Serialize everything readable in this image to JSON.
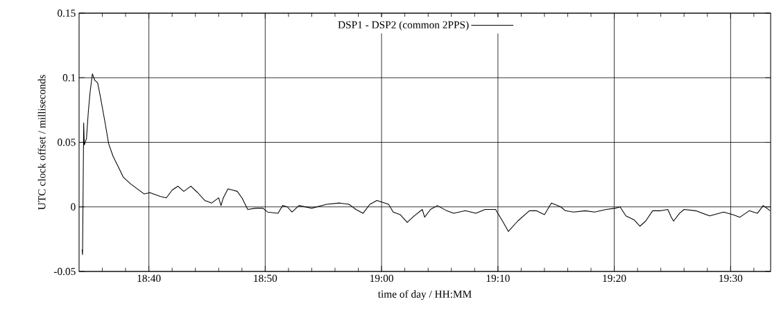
{
  "chart_data": {
    "type": "line",
    "xlabel": "time of day / HH:MM",
    "ylabel": "UTC clock offset / milliseconds",
    "xlim": [
      18.5667,
      19.5573
    ],
    "ylim": [
      -0.05,
      0.15
    ],
    "xticks": [
      {
        "value": 18.6,
        "label": null
      },
      {
        "value": 18.6333,
        "label": null
      },
      {
        "value": 18.6667,
        "label": "18:40"
      },
      {
        "value": 18.7,
        "label": null
      },
      {
        "value": 18.7333,
        "label": null
      },
      {
        "value": 18.7667,
        "label": null
      },
      {
        "value": 18.8,
        "label": null
      },
      {
        "value": 18.8333,
        "label": "18:50"
      },
      {
        "value": 18.8667,
        "label": null
      },
      {
        "value": 18.9,
        "label": null
      },
      {
        "value": 18.9333,
        "label": null
      },
      {
        "value": 18.9667,
        "label": null
      },
      {
        "value": 19.0,
        "label": "19:00"
      },
      {
        "value": 19.0333,
        "label": null
      },
      {
        "value": 19.0667,
        "label": null
      },
      {
        "value": 19.1,
        "label": null
      },
      {
        "value": 19.1333,
        "label": null
      },
      {
        "value": 19.1667,
        "label": "19:10"
      },
      {
        "value": 19.2,
        "label": null
      },
      {
        "value": 19.2333,
        "label": null
      },
      {
        "value": 19.2667,
        "label": null
      },
      {
        "value": 19.3,
        "label": null
      },
      {
        "value": 19.3333,
        "label": "19:20"
      },
      {
        "value": 19.3667,
        "label": null
      },
      {
        "value": 19.4,
        "label": null
      },
      {
        "value": 19.4333,
        "label": null
      },
      {
        "value": 19.4667,
        "label": null
      },
      {
        "value": 19.5,
        "label": "19:30"
      },
      {
        "value": 19.5333,
        "label": null
      }
    ],
    "yticks": [
      -0.05,
      0,
      0.05,
      0.1,
      0.15
    ],
    "grid": true,
    "legend": "top",
    "series": [
      {
        "name": "DSP1 - DSP2 (common 2PPS)",
        "color": "#000000",
        "x": [
          18.571,
          18.5717,
          18.5733,
          18.5742,
          18.5773,
          18.58,
          18.5825,
          18.5858,
          18.5892,
          18.5933,
          18.5973,
          18.604,
          18.609,
          18.6155,
          18.6238,
          18.63,
          18.64,
          18.65,
          18.66,
          18.6683,
          18.6833,
          18.6917,
          18.7,
          18.7083,
          18.7167,
          18.7267,
          18.7367,
          18.7467,
          18.7567,
          18.7667,
          18.77,
          18.7733,
          18.78,
          18.7867,
          18.7933,
          18.8,
          18.8083,
          18.82,
          18.83,
          18.8367,
          18.8517,
          18.8583,
          18.865,
          18.8717,
          18.8817,
          18.9,
          18.9217,
          18.94,
          18.9533,
          18.9633,
          18.9733,
          18.9833,
          18.9933,
          19.01,
          19.0167,
          19.0267,
          19.0367,
          19.0467,
          19.0583,
          19.0617,
          19.07,
          19.08,
          19.0933,
          19.1033,
          19.12,
          19.135,
          19.1483,
          19.1633,
          19.1733,
          19.1817,
          19.195,
          19.2117,
          19.2217,
          19.2333,
          19.2433,
          19.2567,
          19.2633,
          19.275,
          19.2917,
          19.305,
          19.3217,
          19.335,
          19.3417,
          19.35,
          19.3617,
          19.37,
          19.3783,
          19.3883,
          19.4,
          19.41,
          19.415,
          19.4183,
          19.4267,
          19.4333,
          19.45,
          19.47,
          19.49,
          19.5033,
          19.5133,
          19.5267,
          19.5383,
          19.5467,
          19.5567
        ],
        "values": [
          -0.033,
          -0.037,
          0.065,
          0.048,
          0.053,
          0.074,
          0.089,
          0.103,
          0.098,
          0.096,
          0.085,
          0.065,
          0.049,
          0.039,
          0.03,
          0.023,
          0.018,
          0.014,
          0.01,
          0.011,
          0.008,
          0.007,
          0.013,
          0.016,
          0.012,
          0.016,
          0.011,
          0.005,
          0.003,
          0.007,
          0.001,
          0.007,
          0.014,
          0.013,
          0.012,
          0.007,
          -0.002,
          -0.001,
          -0.001,
          -0.004,
          -0.005,
          0.001,
          0.0,
          -0.004,
          0.001,
          -0.001,
          0.002,
          0.003,
          0.002,
          -0.002,
          -0.005,
          0.002,
          0.005,
          0.002,
          -0.004,
          -0.006,
          -0.012,
          -0.007,
          -0.002,
          -0.008,
          -0.002,
          0.001,
          -0.003,
          -0.005,
          -0.003,
          -0.005,
          -0.002,
          -0.002,
          -0.011,
          -0.019,
          -0.011,
          -0.003,
          -0.003,
          -0.006,
          0.003,
          0.0,
          -0.003,
          -0.004,
          -0.003,
          -0.004,
          -0.002,
          -0.001,
          0.0,
          -0.007,
          -0.01,
          -0.015,
          -0.011,
          -0.003,
          -0.003,
          -0.002,
          -0.008,
          -0.011,
          -0.005,
          -0.002,
          -0.003,
          -0.007,
          -0.004,
          -0.006,
          -0.008,
          -0.003,
          -0.005,
          0.001,
          -0.003
        ]
      }
    ]
  }
}
